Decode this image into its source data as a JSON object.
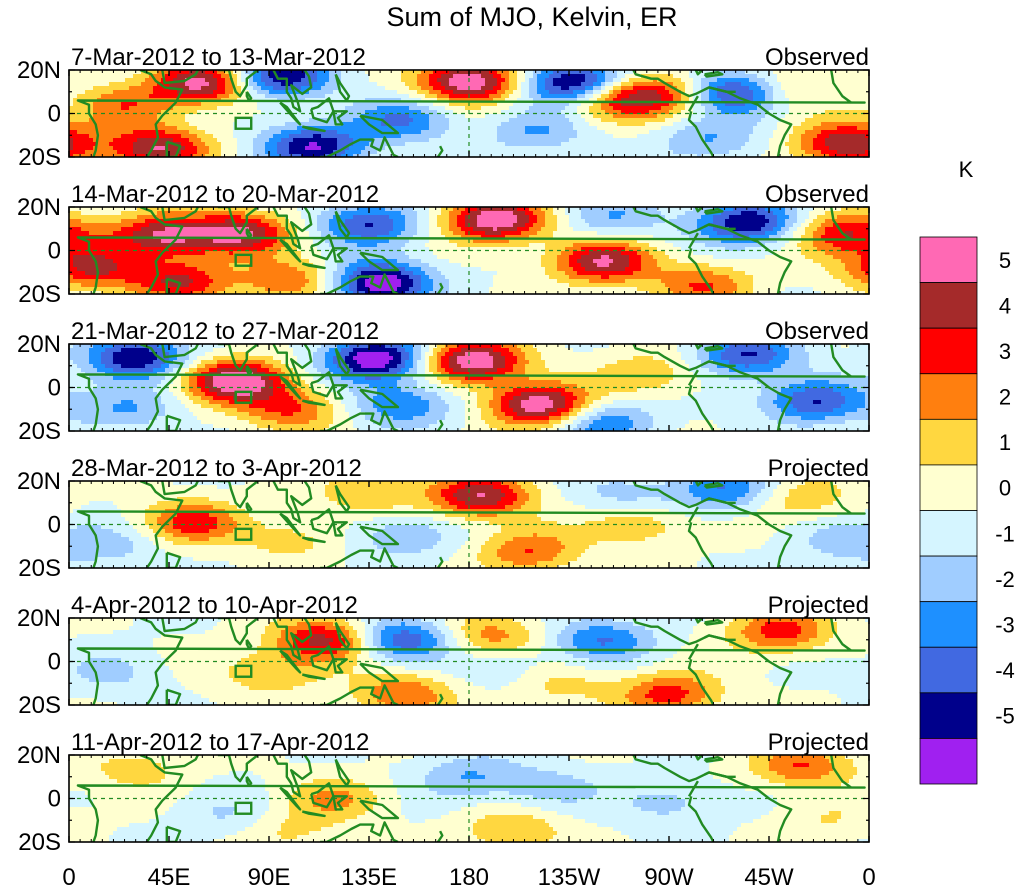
{
  "title": "Sum of MJO, Kelvin, ER",
  "colors": {
    "neg5": "#a020f0",
    "neg4": "#00008b",
    "neg3": "#4169e1",
    "neg2": "#1e90ff",
    "neg1": "#a0cdff",
    "neg0": "#d5f5ff",
    "pos0": "#ffffd0",
    "pos1": "#ffd740",
    "pos2": "#ff7f0f",
    "pos3": "#ff0000",
    "pos4": "#a52a2a",
    "pos5": "#ff69b4",
    "land": "#228b22"
  },
  "chart_data": {
    "type": "heatmap",
    "units": "K",
    "variable": "Sum of MJO, Kelvin, ER anomaly",
    "lat_range": [
      -20,
      20
    ],
    "lon_range": [
      0,
      360
    ],
    "y_ticks": [
      "20N",
      "0",
      "20S"
    ],
    "x_ticks": [
      "0",
      "45E",
      "90E",
      "135E",
      "180",
      "135W",
      "90W",
      "45W",
      "0"
    ],
    "levels": [
      -5,
      -4,
      -3,
      -2,
      -1,
      0,
      1,
      2,
      3,
      4,
      5
    ],
    "colorbar_labels": [
      "5",
      "4",
      "3",
      "2",
      "1",
      "0",
      "-1",
      "-2",
      "-3",
      "-4",
      "-5"
    ],
    "panels": [
      {
        "period": "7-Mar-2012 to 13-Mar-2012",
        "status": "Observed",
        "blobs": [
          {
            "lon": 60,
            "lat": 14,
            "amp": 5.5
          },
          {
            "lon": 40,
            "lat": -16,
            "amp": 5
          },
          {
            "lon": 25,
            "lat": 4,
            "amp": 2.5
          },
          {
            "lon": 95,
            "lat": 17,
            "amp": -5
          },
          {
            "lon": 110,
            "lat": -15,
            "amp": -5
          },
          {
            "lon": 150,
            "lat": -3,
            "amp": -3
          },
          {
            "lon": 180,
            "lat": 15,
            "amp": 6
          },
          {
            "lon": 228,
            "lat": 14,
            "amp": -6
          },
          {
            "lon": 245,
            "lat": 7,
            "amp": 4
          },
          {
            "lon": 268,
            "lat": 9,
            "amp": 3
          },
          {
            "lon": 300,
            "lat": 10,
            "amp": -5
          },
          {
            "lon": 320,
            "lat": 12,
            "amp": 2
          },
          {
            "lon": 350,
            "lat": -14,
            "amp": 5
          },
          {
            "lon": 210,
            "lat": -8,
            "amp": -2
          },
          {
            "lon": 288,
            "lat": -12,
            "amp": -2
          }
        ]
      },
      {
        "period": "14-Mar-2012 to 20-Mar-2012",
        "status": "Observed",
        "blobs": [
          {
            "lon": 42,
            "lat": 7,
            "amp": 5
          },
          {
            "lon": 77,
            "lat": 8,
            "amp": 5
          },
          {
            "lon": 10,
            "lat": -8,
            "amp": 4
          },
          {
            "lon": 50,
            "lat": -14,
            "amp": 4
          },
          {
            "lon": 135,
            "lat": 12,
            "amp": -4
          },
          {
            "lon": 140,
            "lat": -15,
            "amp": -6
          },
          {
            "lon": 192,
            "lat": 14,
            "amp": 6
          },
          {
            "lon": 240,
            "lat": -5,
            "amp": 5
          },
          {
            "lon": 285,
            "lat": -16,
            "amp": 3
          },
          {
            "lon": 305,
            "lat": 13,
            "amp": -5
          },
          {
            "lon": 350,
            "lat": 8,
            "amp": 4
          },
          {
            "lon": 100,
            "lat": -14,
            "amp": 3
          },
          {
            "lon": 245,
            "lat": 15,
            "amp": -2
          }
        ]
      },
      {
        "period": "21-Mar-2012 to 27-Mar-2012",
        "status": "Observed",
        "blobs": [
          {
            "lon": 75,
            "lat": 3,
            "amp": 6
          },
          {
            "lon": 30,
            "lat": 14,
            "amp": -5
          },
          {
            "lon": 100,
            "lat": -10,
            "amp": 3
          },
          {
            "lon": 138,
            "lat": 13,
            "amp": -6
          },
          {
            "lon": 182,
            "lat": 12,
            "amp": 6
          },
          {
            "lon": 150,
            "lat": -8,
            "amp": -3
          },
          {
            "lon": 212,
            "lat": -8,
            "amp": 6
          },
          {
            "lon": 260,
            "lat": 6,
            "amp": 2
          },
          {
            "lon": 305,
            "lat": 15,
            "amp": -4
          },
          {
            "lon": 335,
            "lat": -6,
            "amp": -4
          },
          {
            "lon": 25,
            "lat": -10,
            "amp": -2
          },
          {
            "lon": 240,
            "lat": -16,
            "amp": -3
          }
        ]
      },
      {
        "period": "28-Mar-2012 to 3-Apr-2012",
        "status": "Projected",
        "blobs": [
          {
            "lon": 55,
            "lat": 1,
            "amp": 3.5
          },
          {
            "lon": 185,
            "lat": 13,
            "amp": 5
          },
          {
            "lon": 100,
            "lat": -7,
            "amp": 1.5
          },
          {
            "lon": 135,
            "lat": 15,
            "amp": 2
          },
          {
            "lon": 207,
            "lat": -12,
            "amp": 3
          },
          {
            "lon": 255,
            "lat": 0,
            "amp": 2
          },
          {
            "lon": 295,
            "lat": 16,
            "amp": -3
          },
          {
            "lon": 330,
            "lat": 12,
            "amp": 1.8
          },
          {
            "lon": 150,
            "lat": -5,
            "amp": -2
          },
          {
            "lon": 250,
            "lat": 14,
            "amp": -1.5
          },
          {
            "lon": 20,
            "lat": -10,
            "amp": -1.3
          },
          {
            "lon": 350,
            "lat": -8,
            "amp": -1.5
          }
        ]
      },
      {
        "period": "4-Apr-2012 to 10-Apr-2012",
        "status": "Projected",
        "blobs": [
          {
            "lon": 115,
            "lat": 10,
            "amp": 4.5
          },
          {
            "lon": 90,
            "lat": -5,
            "amp": 2
          },
          {
            "lon": 150,
            "lat": 10,
            "amp": -4
          },
          {
            "lon": 150,
            "lat": -15,
            "amp": 3
          },
          {
            "lon": 190,
            "lat": 12,
            "amp": 2.5
          },
          {
            "lon": 240,
            "lat": 10,
            "amp": -3
          },
          {
            "lon": 270,
            "lat": -15,
            "amp": 3.5
          },
          {
            "lon": 320,
            "lat": 14,
            "amp": 3.5
          },
          {
            "lon": 220,
            "lat": -10,
            "amp": 1.5
          },
          {
            "lon": 20,
            "lat": -5,
            "amp": -1.2
          },
          {
            "lon": 200,
            "lat": -3,
            "amp": -1.2
          }
        ]
      },
      {
        "period": "11-Apr-2012 to 17-Apr-2012",
        "status": "Projected",
        "blobs": [
          {
            "lon": 120,
            "lat": 0,
            "amp": 2
          },
          {
            "lon": 30,
            "lat": 14,
            "amp": 1.5
          },
          {
            "lon": 180,
            "lat": 10,
            "amp": -2
          },
          {
            "lon": 215,
            "lat": 5,
            "amp": -1.5
          },
          {
            "lon": 200,
            "lat": -15,
            "amp": 2
          },
          {
            "lon": 330,
            "lat": 15,
            "amp": 3
          },
          {
            "lon": 100,
            "lat": -15,
            "amp": 1.2
          },
          {
            "lon": 270,
            "lat": -2,
            "amp": -1.5
          },
          {
            "lon": 70,
            "lat": -8,
            "amp": -1
          },
          {
            "lon": 340,
            "lat": -10,
            "amp": 1
          }
        ]
      }
    ]
  }
}
